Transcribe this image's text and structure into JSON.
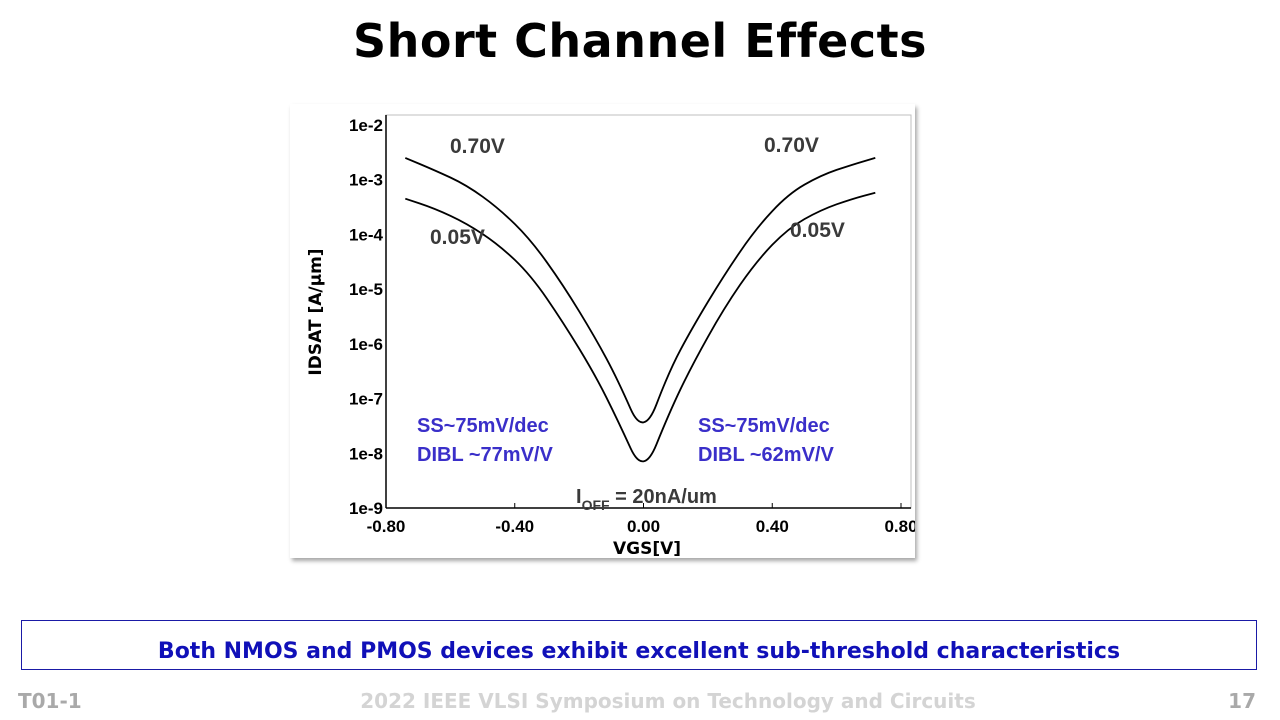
{
  "slide": {
    "title": "Short Channel Effects",
    "conclusion": "Both NMOS and PMOS devices exhibit excellent sub-threshold characteristics",
    "footer_left": "T01-1",
    "footer_center": "2022 IEEE VLSI Symposium on Technology and Circuits",
    "footer_right": "17"
  },
  "chart_data": {
    "type": "line",
    "xlabel": "VGS[V]",
    "ylabel": "IDSAT [A/μm]",
    "yscale": "log",
    "xlim": [
      -0.8,
      0.8
    ],
    "ylim": [
      1e-09,
      0.01
    ],
    "x_ticks": [
      "-0.80",
      "-0.40",
      "0.00",
      "0.40",
      "0.80"
    ],
    "y_ticks": [
      "1e-2",
      "1e-3",
      "1e-4",
      "1e-5",
      "1e-6",
      "1e-7",
      "1e-8",
      "1e-9"
    ],
    "grid": false,
    "x": [
      -0.74,
      -0.65,
      -0.55,
      -0.45,
      -0.35,
      -0.25,
      -0.15,
      -0.08,
      0.0,
      0.08,
      0.15,
      0.25,
      0.35,
      0.45,
      0.55,
      0.65,
      0.72
    ],
    "series": [
      {
        "name": "0.70V",
        "values": [
          0.0025,
          0.0015,
          0.0008,
          0.0003,
          8e-05,
          1.2e-05,
          1.3e-06,
          2.2e-07,
          1.9e-08,
          3.2e-07,
          1.9e-06,
          1.8e-05,
          0.00013,
          0.00055,
          0.0012,
          0.0019,
          0.0025
        ]
      },
      {
        "name": "0.05V",
        "values": [
          0.00045,
          0.0003,
          0.00016,
          6.5e-05,
          1.8e-05,
          2.5e-06,
          2.7e-07,
          4e-08,
          3.8e-09,
          5.5e-08,
          4e-07,
          4.5e-06,
          3.2e-05,
          0.00013,
          0.00028,
          0.00045,
          0.00058
        ]
      }
    ],
    "labels": {
      "left_top": "0.70V",
      "left_bottom": "0.05V",
      "right_top": "0.70V",
      "right_bottom": "0.05V"
    },
    "annotations": {
      "left_ss": "SS~75mV/dec",
      "left_dibl": "DIBL ~77mV/V",
      "right_ss": "SS~75mV/dec",
      "right_dibl": "DIBL ~62mV/V",
      "ioff_main": "I",
      "ioff_sub": "OFF",
      "ioff_value": " = 20nA/um"
    }
  }
}
